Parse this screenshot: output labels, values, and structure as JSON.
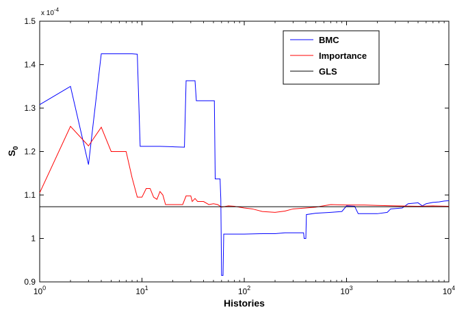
{
  "chart_data": {
    "type": "line",
    "xlabel": "Histories",
    "ylabel_base": "S",
    "ylabel_sub": "0",
    "y_multiplier": {
      "base": "x 10",
      "exp": "-4"
    },
    "x_scale": "log",
    "xlim": [
      1,
      10000
    ],
    "ylim": [
      0.9,
      1.5
    ],
    "x_ticks": [
      {
        "value": 1,
        "base": "10",
        "exp": "0"
      },
      {
        "value": 10,
        "base": "10",
        "exp": "1"
      },
      {
        "value": 100,
        "base": "10",
        "exp": "2"
      },
      {
        "value": 1000,
        "base": "10",
        "exp": "3"
      },
      {
        "value": 10000,
        "base": "10",
        "exp": "4"
      }
    ],
    "y_ticks": [
      {
        "value": 0.9,
        "label": "0.9"
      },
      {
        "value": 1.0,
        "label": "1"
      },
      {
        "value": 1.1,
        "label": "1.1"
      },
      {
        "value": 1.2,
        "label": "1.2"
      },
      {
        "value": 1.3,
        "label": "1.3"
      },
      {
        "value": 1.4,
        "label": "1.4"
      },
      {
        "value": 1.5,
        "label": "1.5"
      }
    ],
    "legend_position": "top-right",
    "grid": false,
    "series": [
      {
        "name": "BMC",
        "color": "#0000ff",
        "points": [
          [
            1,
            1.308
          ],
          [
            2,
            1.35
          ],
          [
            3,
            1.17
          ],
          [
            4,
            1.425
          ],
          [
            5,
            1.425
          ],
          [
            6,
            1.425
          ],
          [
            7,
            1.425
          ],
          [
            8,
            1.425
          ],
          [
            9,
            1.424
          ],
          [
            9.6,
            1.212
          ],
          [
            12,
            1.212
          ],
          [
            15,
            1.212
          ],
          [
            20,
            1.211
          ],
          [
            26,
            1.21
          ],
          [
            27,
            1.363
          ],
          [
            33,
            1.363
          ],
          [
            34,
            1.317
          ],
          [
            45,
            1.317
          ],
          [
            51,
            1.317
          ],
          [
            52,
            1.137
          ],
          [
            58,
            1.137
          ],
          [
            59,
            1.09
          ],
          [
            60,
            0.915
          ],
          [
            62,
            0.915
          ],
          [
            63,
            1.01
          ],
          [
            100,
            1.01
          ],
          [
            150,
            1.011
          ],
          [
            200,
            1.011
          ],
          [
            250,
            1.013
          ],
          [
            300,
            1.013
          ],
          [
            380,
            1.013
          ],
          [
            385,
            1.0
          ],
          [
            400,
            1.0
          ],
          [
            405,
            1.055
          ],
          [
            500,
            1.058
          ],
          [
            700,
            1.06
          ],
          [
            900,
            1.062
          ],
          [
            1000,
            1.075
          ],
          [
            1200,
            1.074
          ],
          [
            1300,
            1.057
          ],
          [
            1500,
            1.057
          ],
          [
            2000,
            1.057
          ],
          [
            2500,
            1.06
          ],
          [
            2700,
            1.068
          ],
          [
            3500,
            1.07
          ],
          [
            4000,
            1.08
          ],
          [
            5000,
            1.082
          ],
          [
            5500,
            1.075
          ],
          [
            6000,
            1.08
          ],
          [
            7000,
            1.083
          ],
          [
            8000,
            1.084
          ],
          [
            9000,
            1.086
          ],
          [
            10000,
            1.087
          ]
        ]
      },
      {
        "name": "Importance",
        "color": "#ff0000",
        "points": [
          [
            1,
            1.105
          ],
          [
            2,
            1.258
          ],
          [
            3,
            1.213
          ],
          [
            4,
            1.256
          ],
          [
            5,
            1.2
          ],
          [
            6,
            1.2
          ],
          [
            7,
            1.2
          ],
          [
            8,
            1.14
          ],
          [
            9,
            1.095
          ],
          [
            10,
            1.095
          ],
          [
            11,
            1.115
          ],
          [
            12,
            1.115
          ],
          [
            13,
            1.095
          ],
          [
            14,
            1.09
          ],
          [
            15,
            1.108
          ],
          [
            16,
            1.1
          ],
          [
            17,
            1.078
          ],
          [
            20,
            1.078
          ],
          [
            25,
            1.078
          ],
          [
            27,
            1.098
          ],
          [
            30,
            1.098
          ],
          [
            31,
            1.085
          ],
          [
            33,
            1.092
          ],
          [
            35,
            1.085
          ],
          [
            40,
            1.085
          ],
          [
            45,
            1.078
          ],
          [
            50,
            1.08
          ],
          [
            55,
            1.078
          ],
          [
            60,
            1.072
          ],
          [
            70,
            1.075
          ],
          [
            80,
            1.074
          ],
          [
            100,
            1.07
          ],
          [
            120,
            1.068
          ],
          [
            150,
            1.062
          ],
          [
            200,
            1.06
          ],
          [
            250,
            1.063
          ],
          [
            300,
            1.068
          ],
          [
            400,
            1.07
          ],
          [
            500,
            1.072
          ],
          [
            700,
            1.078
          ],
          [
            1000,
            1.077
          ],
          [
            1500,
            1.077
          ],
          [
            2000,
            1.076
          ],
          [
            3000,
            1.075
          ],
          [
            5000,
            1.074
          ],
          [
            7000,
            1.075
          ],
          [
            10000,
            1.074
          ]
        ]
      },
      {
        "name": "GLS",
        "color": "#000000",
        "points": [
          [
            1,
            1.073
          ],
          [
            10000,
            1.073
          ]
        ]
      }
    ]
  }
}
